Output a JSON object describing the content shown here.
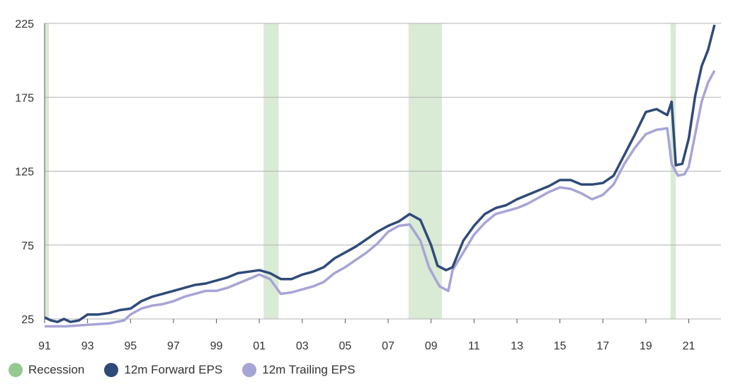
{
  "chart_data": {
    "type": "line",
    "title": "",
    "xlabel": "",
    "ylabel": "",
    "ylim": [
      25,
      225
    ],
    "xlim": [
      1991.0,
      2022.5
    ],
    "y_ticks": [
      "225",
      "175",
      "125",
      "75",
      "25"
    ],
    "y_tick_values": [
      225,
      175,
      125,
      75,
      25
    ],
    "x_ticks": [
      "91",
      "93",
      "95",
      "97",
      "99",
      "01",
      "03",
      "05",
      "07",
      "09",
      "11",
      "13",
      "15",
      "17",
      "19",
      "21"
    ],
    "x_tick_values": [
      1991,
      1993,
      1995,
      1997,
      1999,
      2001,
      2003,
      2005,
      2007,
      2009,
      2011,
      2013,
      2015,
      2017,
      2019,
      2021
    ],
    "grid": "horizontal",
    "legend_position": "bottom-left",
    "colors": {
      "recession": "#d9ead5",
      "forward": "#2f4a7a",
      "trailing": "#a7a4d6",
      "grid": "#b3b3b3"
    },
    "recessions": [
      {
        "start": 1991.0,
        "end": 1991.2
      },
      {
        "start": 2001.2,
        "end": 2001.9
      },
      {
        "start": 2007.95,
        "end": 2009.5
      },
      {
        "start": 2020.15,
        "end": 2020.4
      }
    ],
    "series": [
      {
        "name": "12m Forward EPS",
        "x": [
          1991.0,
          1991.3,
          1991.6,
          1991.9,
          1992.2,
          1992.6,
          1993.0,
          1993.5,
          1994.0,
          1994.5,
          1995.0,
          1995.5,
          1996.0,
          1996.5,
          1997.0,
          1997.5,
          1998.0,
          1998.5,
          1999.0,
          1999.5,
          2000.0,
          2000.5,
          2001.0,
          2001.5,
          2002.0,
          2002.5,
          2003.0,
          2003.5,
          2004.0,
          2004.5,
          2005.0,
          2005.5,
          2006.0,
          2006.5,
          2007.0,
          2007.5,
          2008.0,
          2008.5,
          2009.0,
          2009.3,
          2009.7,
          2010.0,
          2010.5,
          2011.0,
          2011.5,
          2012.0,
          2012.5,
          2013.0,
          2013.5,
          2014.0,
          2014.5,
          2015.0,
          2015.5,
          2016.0,
          2016.5,
          2017.0,
          2017.5,
          2018.0,
          2018.5,
          2019.0,
          2019.5,
          2020.0,
          2020.2,
          2020.4,
          2020.7,
          2021.0,
          2021.3,
          2021.6,
          2021.9,
          2022.2
        ],
        "values": [
          26,
          24,
          23,
          25,
          23,
          24,
          28,
          28,
          29,
          31,
          32,
          37,
          40,
          42,
          44,
          46,
          48,
          49,
          51,
          53,
          56,
          57,
          58,
          56,
          52,
          52,
          55,
          57,
          60,
          66,
          70,
          74,
          79,
          84,
          88,
          91,
          96,
          92,
          75,
          61,
          58,
          60,
          78,
          88,
          96,
          100,
          102,
          106,
          109,
          112,
          115,
          119,
          119,
          116,
          116,
          117,
          122,
          136,
          150,
          165,
          167,
          163,
          172,
          129,
          130,
          147,
          176,
          196,
          207,
          224
        ]
      },
      {
        "name": "12m Trailing EPS",
        "x": [
          1991.0,
          1992.0,
          1993.0,
          1994.0,
          1994.7,
          1995.0,
          1995.5,
          1996.0,
          1996.5,
          1997.0,
          1997.5,
          1998.0,
          1998.5,
          1999.0,
          1999.5,
          2000.0,
          2000.5,
          2001.0,
          2001.5,
          2002.0,
          2002.5,
          2003.0,
          2003.5,
          2004.0,
          2004.5,
          2005.0,
          2005.5,
          2006.0,
          2006.5,
          2007.0,
          2007.5,
          2008.0,
          2008.5,
          2008.9,
          2009.2,
          2009.4,
          2009.8,
          2010.0,
          2010.5,
          2011.0,
          2011.5,
          2012.0,
          2012.5,
          2013.0,
          2013.5,
          2014.0,
          2014.5,
          2015.0,
          2015.5,
          2016.0,
          2016.5,
          2017.0,
          2017.5,
          2018.0,
          2018.5,
          2019.0,
          2019.5,
          2020.0,
          2020.2,
          2020.5,
          2020.8,
          2021.0,
          2021.3,
          2021.6,
          2021.9,
          2022.2
        ],
        "values": [
          20,
          20,
          21,
          22,
          24,
          28,
          32,
          34,
          35,
          37,
          40,
          42,
          44,
          44,
          46,
          49,
          52,
          55,
          52,
          42,
          43,
          45,
          47,
          50,
          56,
          60,
          65,
          70,
          76,
          84,
          88,
          89,
          78,
          60,
          52,
          47,
          44,
          58,
          70,
          82,
          90,
          96,
          98,
          100,
          103,
          107,
          111,
          114,
          113,
          110,
          106,
          109,
          116,
          130,
          141,
          150,
          153,
          154,
          130,
          122,
          123,
          128,
          150,
          172,
          185,
          193
        ]
      }
    ],
    "legend": [
      {
        "label": "Recession",
        "color": "#94c891"
      },
      {
        "label": "12m Forward EPS",
        "color": "#2f4a7a"
      },
      {
        "label": "12m Trailing EPS",
        "color": "#a7a4d6"
      }
    ]
  }
}
